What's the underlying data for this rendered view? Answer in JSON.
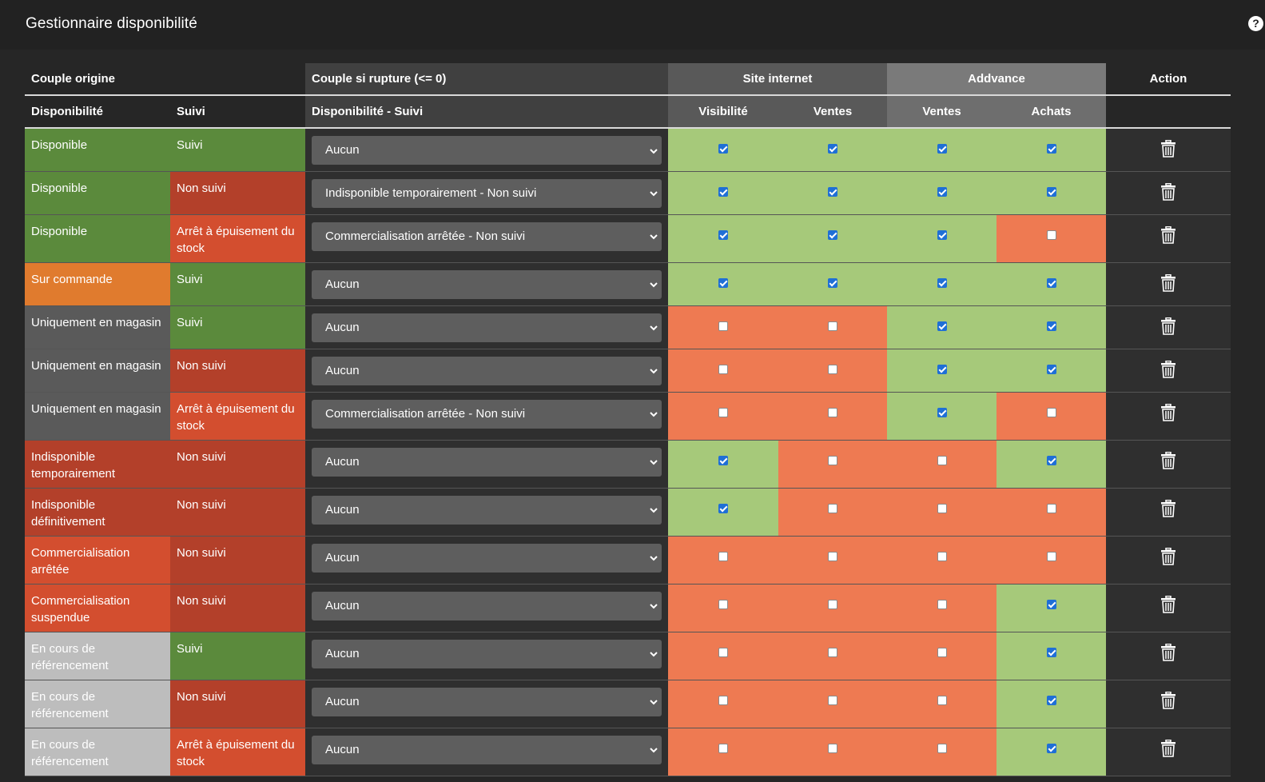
{
  "header": {
    "title": "Gestionnaire disponibilité",
    "help_icon": "question-circle-icon"
  },
  "table": {
    "group_headers": {
      "origin": "Couple origine",
      "rupture": "Couple si rupture (<= 0)",
      "site": "Site internet",
      "advance": "Addvance",
      "action": "Action"
    },
    "sub_headers": {
      "disponibilite": "Disponibilité",
      "suivi": "Suivi",
      "dispo_suivi": "Disponibilité - Suivi",
      "visibilite": "Visibilité",
      "site_ventes": "Ventes",
      "adv_ventes": "Ventes",
      "achats": "Achats"
    },
    "rows": [
      {
        "dispo": "Disponible",
        "dispo_color": "green",
        "suivi": "Suivi",
        "suivi_color": "green",
        "rupture": "Aucun",
        "checks": [
          true,
          true,
          true,
          true
        ]
      },
      {
        "dispo": "Disponible",
        "dispo_color": "green",
        "suivi": "Non suivi",
        "suivi_color": "red",
        "rupture": "Indisponible temporairement - Non suivi",
        "checks": [
          true,
          true,
          true,
          true
        ]
      },
      {
        "dispo": "Disponible",
        "dispo_color": "green",
        "suivi": "Arrêt à épuisement du stock",
        "suivi_color": "redorange",
        "rupture": "Commercialisation arrêtée - Non suivi",
        "checks": [
          true,
          true,
          true,
          false
        ]
      },
      {
        "dispo": "Sur commande",
        "dispo_color": "orange",
        "suivi": "Suivi",
        "suivi_color": "green",
        "rupture": "Aucun",
        "checks": [
          true,
          true,
          true,
          true
        ]
      },
      {
        "dispo": "Uniquement en magasin",
        "dispo_color": "grey",
        "suivi": "Suivi",
        "suivi_color": "green",
        "rupture": "Aucun",
        "checks": [
          false,
          false,
          true,
          true
        ]
      },
      {
        "dispo": "Uniquement en magasin",
        "dispo_color": "grey",
        "suivi": "Non suivi",
        "suivi_color": "red",
        "rupture": "Aucun",
        "checks": [
          false,
          false,
          true,
          true
        ]
      },
      {
        "dispo": "Uniquement en magasin",
        "dispo_color": "grey",
        "suivi": "Arrêt à épuisement du stock",
        "suivi_color": "redorange",
        "rupture": "Commercialisation arrêtée - Non suivi",
        "checks": [
          false,
          false,
          true,
          false
        ]
      },
      {
        "dispo": "Indisponible temporairement",
        "dispo_color": "red",
        "suivi": "Non suivi",
        "suivi_color": "red",
        "rupture": "Aucun",
        "checks": [
          true,
          false,
          false,
          true
        ]
      },
      {
        "dispo": "Indisponible définitivement",
        "dispo_color": "red",
        "suivi": "Non suivi",
        "suivi_color": "red",
        "rupture": "Aucun",
        "checks": [
          true,
          false,
          false,
          false
        ]
      },
      {
        "dispo": "Commercialisation arrêtée",
        "dispo_color": "redorange",
        "suivi": "Non suivi",
        "suivi_color": "red",
        "rupture": "Aucun",
        "checks": [
          false,
          false,
          false,
          false
        ]
      },
      {
        "dispo": "Commercialisation suspendue",
        "dispo_color": "redorange",
        "suivi": "Non suivi",
        "suivi_color": "red",
        "rupture": "Aucun",
        "checks": [
          false,
          false,
          false,
          true
        ]
      },
      {
        "dispo": "En cours de référencement",
        "dispo_color": "lightgrey",
        "suivi": "Suivi",
        "suivi_color": "green",
        "rupture": "Aucun",
        "checks": [
          false,
          false,
          false,
          true
        ]
      },
      {
        "dispo": "En cours de référencement",
        "dispo_color": "lightgrey",
        "suivi": "Non suivi",
        "suivi_color": "red",
        "rupture": "Aucun",
        "checks": [
          false,
          false,
          false,
          true
        ]
      },
      {
        "dispo": "En cours de référencement",
        "dispo_color": "lightgrey",
        "suivi": "Arrêt à épuisement du stock",
        "suivi_color": "redorange",
        "rupture": "Aucun",
        "checks": [
          false,
          false,
          false,
          true
        ]
      }
    ],
    "action_icon": "trash-icon",
    "colors": {
      "green": "#5b8a3c",
      "red": "#b3402a",
      "orange": "#e07b2e",
      "grey": "#5a5a5a",
      "lightgrey": "#bdbdbd",
      "redorange": "#d34e2f",
      "ok": "#a6c97a",
      "ko": "#ee7a52"
    }
  }
}
